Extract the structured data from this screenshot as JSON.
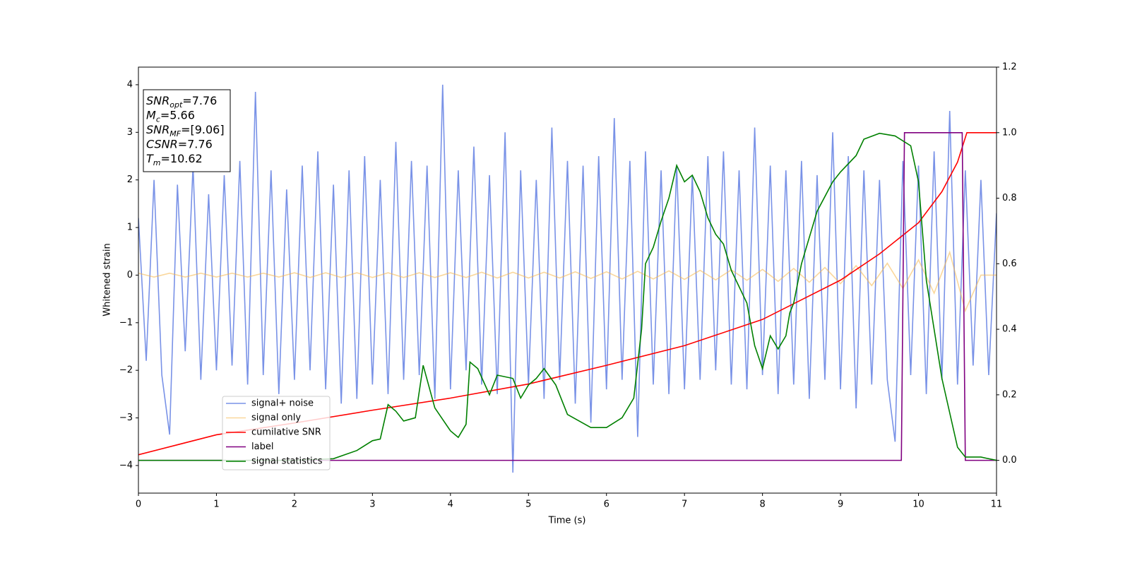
{
  "chart_data": {
    "type": "line",
    "xlabel": "Time (s)",
    "ylabel": "Whitened strain",
    "xlim": [
      0,
      11
    ],
    "xticks": [
      0,
      1,
      2,
      3,
      4,
      5,
      6,
      7,
      8,
      9,
      10,
      11
    ],
    "ylim": [
      -4.58,
      4.37
    ],
    "yticks": [
      {
        "value": -4,
        "label": "−4"
      },
      {
        "value": -3,
        "label": "−3"
      },
      {
        "value": -2,
        "label": "−2"
      },
      {
        "value": -1,
        "label": "−1"
      },
      0,
      1,
      2,
      3,
      4
    ],
    "y2lim": [
      -0.1,
      1.2
    ],
    "y2ticks": [
      {
        "value": 0,
        "label": "0.0"
      },
      {
        "value": 0.2,
        "label": "0.2"
      },
      {
        "value": 0.4,
        "label": "0.4"
      },
      {
        "value": 0.6,
        "label": "0.6"
      },
      {
        "value": 0.8,
        "label": "0.8"
      },
      {
        "value": 1.0,
        "label": "1.0"
      },
      {
        "value": 1.2,
        "label": "1.2"
      }
    ],
    "legend_loc": "lower left",
    "annotations": [
      {
        "main": "SNR",
        "sub": "opt",
        "rest": "=7.76"
      },
      {
        "main": "M",
        "sub": "c",
        "rest": "=5.66"
      },
      {
        "main": "SNR",
        "sub": "MF",
        "rest": "=[9.06]"
      },
      {
        "main": "CSNR",
        "sub": "",
        "rest": "=7.76"
      },
      {
        "main": "T",
        "sub": "m",
        "rest": "=10.62"
      }
    ],
    "series": [
      {
        "name": "signal+ noise",
        "color": "#6a86e4",
        "alpha": 0.9,
        "x": [
          0,
          0.1,
          0.2,
          0.3,
          0.4,
          0.5,
          0.6,
          0.7,
          0.8,
          0.9,
          1,
          1.1,
          1.2,
          1.3,
          1.4,
          1.5,
          1.6,
          1.7,
          1.8,
          1.9,
          2,
          2.1,
          2.2,
          2.3,
          2.4,
          2.5,
          2.6,
          2.7,
          2.8,
          2.9,
          3,
          3.1,
          3.2,
          3.3,
          3.4,
          3.5,
          3.6,
          3.7,
          3.8,
          3.9,
          4,
          4.1,
          4.2,
          4.3,
          4.4,
          4.5,
          4.6,
          4.7,
          4.8,
          4.9,
          5,
          5.1,
          5.2,
          5.3,
          5.4,
          5.5,
          5.6,
          5.7,
          5.8,
          5.9,
          6,
          6.1,
          6.2,
          6.3,
          6.4,
          6.5,
          6.6,
          6.7,
          6.8,
          6.9,
          7,
          7.1,
          7.2,
          7.3,
          7.4,
          7.5,
          7.6,
          7.7,
          7.8,
          7.9,
          8,
          8.1,
          8.2,
          8.3,
          8.4,
          8.5,
          8.6,
          8.7,
          8.8,
          8.9,
          9,
          9.1,
          9.2,
          9.3,
          9.4,
          9.5,
          9.6,
          9.7,
          9.8,
          9.9,
          10,
          10.1,
          10.2,
          10.3,
          10.4,
          10.5,
          10.6,
          10.7,
          10.8,
          10.9,
          11
        ],
        "values": [
          1.2,
          -1.8,
          2.0,
          -2.1,
          -3.35,
          1.9,
          -1.6,
          2.3,
          -2.2,
          1.7,
          -2.0,
          2.1,
          -1.9,
          2.4,
          -2.3,
          3.85,
          -2.1,
          2.2,
          -2.5,
          1.8,
          -2.2,
          2.3,
          -2.0,
          2.6,
          -2.4,
          1.9,
          -2.7,
          2.2,
          -2.6,
          2.5,
          -2.3,
          2.0,
          -2.5,
          2.8,
          -2.2,
          2.4,
          -2.1,
          2.3,
          -2.6,
          4.0,
          -2.4,
          2.2,
          -2.0,
          2.7,
          -2.3,
          2.1,
          -2.5,
          3.0,
          -4.15,
          2.2,
          -2.3,
          2.0,
          -2.6,
          3.1,
          -2.2,
          2.4,
          -2.7,
          2.3,
          -3.1,
          2.5,
          -2.4,
          3.3,
          -2.2,
          2.4,
          -3.4,
          2.6,
          -2.3,
          2.2,
          -2.5,
          2.3,
          -2.4,
          2.1,
          -2.2,
          2.5,
          -2.0,
          2.6,
          -2.3,
          2.2,
          -2.4,
          3.1,
          -2.1,
          2.3,
          -2.5,
          2.2,
          -2.3,
          2.4,
          -2.6,
          2.1,
          -2.2,
          3.0,
          -2.4,
          2.5,
          -2.8,
          2.2,
          -2.3,
          2.0,
          -2.2,
          -3.5,
          2.4,
          -2.1,
          2.3,
          -2.5,
          2.6,
          -2.2,
          3.45,
          -2.3,
          2.2,
          -1.9,
          2.0,
          -2.1,
          1.3
        ]
      },
      {
        "name": "signal only",
        "color": "#f6b64a",
        "alpha": 0.55,
        "x": [
          0,
          0.2,
          0.4,
          0.6,
          0.8,
          1,
          1.2,
          1.4,
          1.6,
          1.8,
          2,
          2.2,
          2.4,
          2.6,
          2.8,
          3,
          3.2,
          3.4,
          3.6,
          3.8,
          4,
          4.2,
          4.4,
          4.6,
          4.8,
          5,
          5.2,
          5.4,
          5.6,
          5.8,
          6,
          6.2,
          6.4,
          6.6,
          6.8,
          7,
          7.2,
          7.4,
          7.6,
          7.8,
          8,
          8.2,
          8.4,
          8.6,
          8.8,
          9,
          9.2,
          9.4,
          9.6,
          9.8,
          10,
          10.2,
          10.4,
          10.6,
          10.8,
          11
        ],
        "values": [
          0.04,
          -0.04,
          0.04,
          -0.04,
          0.04,
          -0.04,
          0.04,
          -0.04,
          0.04,
          -0.04,
          0.05,
          -0.05,
          0.05,
          -0.05,
          0.05,
          -0.05,
          0.05,
          -0.05,
          0.05,
          -0.05,
          0.05,
          -0.05,
          0.06,
          -0.06,
          0.06,
          -0.06,
          0.06,
          -0.06,
          0.07,
          -0.07,
          0.07,
          -0.08,
          0.08,
          -0.08,
          0.09,
          -0.09,
          0.1,
          -0.1,
          0.11,
          -0.11,
          0.12,
          -0.13,
          0.14,
          -0.15,
          0.16,
          -0.18,
          0.2,
          -0.22,
          0.25,
          -0.28,
          0.32,
          -0.38,
          0.48,
          -0.75,
          0,
          0
        ]
      },
      {
        "name": "cumilative SNR",
        "color": "#ff0000",
        "alpha": 1,
        "axis": "y2",
        "x": [
          0,
          1,
          2,
          3,
          4,
          5,
          6,
          7,
          8,
          9,
          9.5,
          10,
          10.3,
          10.5,
          10.62,
          11
        ],
        "values": [
          0.017,
          0.078,
          0.114,
          0.153,
          0.19,
          0.233,
          0.29,
          0.35,
          0.43,
          0.55,
          0.63,
          0.725,
          0.82,
          0.91,
          1.0,
          1.0
        ]
      },
      {
        "name": "label",
        "color": "#800080",
        "alpha": 1,
        "axis": "y2",
        "x": [
          0,
          9.78,
          9.82,
          10.56,
          10.6,
          11
        ],
        "values": [
          0,
          0,
          1,
          1,
          0,
          0
        ]
      },
      {
        "name": "signal statistics",
        "color": "#008000",
        "alpha": 1,
        "axis": "y2",
        "x": [
          0,
          2,
          2.5,
          2.8,
          3,
          3.1,
          3.2,
          3.3,
          3.4,
          3.55,
          3.65,
          3.8,
          4,
          4.1,
          4.2,
          4.25,
          4.35,
          4.5,
          4.6,
          4.8,
          4.9,
          5,
          5.1,
          5.2,
          5.35,
          5.5,
          5.8,
          6,
          6.2,
          6.35,
          6.45,
          6.5,
          6.6,
          6.7,
          6.8,
          6.9,
          7,
          7.1,
          7.2,
          7.3,
          7.4,
          7.5,
          7.6,
          7.8,
          7.9,
          8,
          8.1,
          8.2,
          8.3,
          8.35,
          8.4,
          8.5,
          8.6,
          8.7,
          8.9,
          9,
          9.2,
          9.3,
          9.5,
          9.7,
          9.9,
          10,
          10.1,
          10.3,
          10.5,
          10.6,
          10.8,
          11
        ],
        "values": [
          0,
          0,
          0.005,
          0.03,
          0.06,
          0.065,
          0.17,
          0.15,
          0.12,
          0.13,
          0.29,
          0.16,
          0.09,
          0.07,
          0.11,
          0.3,
          0.28,
          0.2,
          0.26,
          0.25,
          0.19,
          0.23,
          0.25,
          0.28,
          0.23,
          0.14,
          0.1,
          0.1,
          0.13,
          0.19,
          0.4,
          0.6,
          0.65,
          0.73,
          0.8,
          0.9,
          0.85,
          0.87,
          0.82,
          0.74,
          0.69,
          0.66,
          0.58,
          0.48,
          0.35,
          0.28,
          0.38,
          0.34,
          0.38,
          0.45,
          0.48,
          0.6,
          0.68,
          0.76,
          0.85,
          0.88,
          0.93,
          0.98,
          0.998,
          0.99,
          0.96,
          0.85,
          0.55,
          0.25,
          0.04,
          0.01,
          0.01,
          0
        ]
      }
    ]
  }
}
